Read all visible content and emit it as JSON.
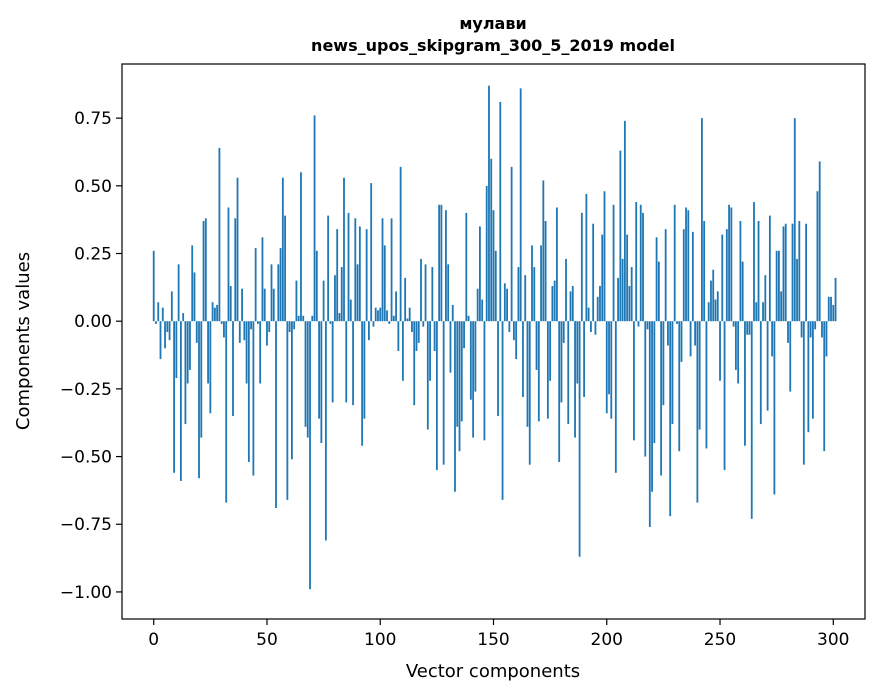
{
  "chart_data": {
    "type": "bar",
    "title_line1": "мулави",
    "title_line2": "news_upos_skipgram_300_5_2019 model",
    "xlabel": "Vector components",
    "ylabel": "Components values",
    "xlim": [
      -14,
      314
    ],
    "ylim": [
      -1.1,
      0.95
    ],
    "xticks": [
      0,
      50,
      100,
      150,
      200,
      250,
      300
    ],
    "xtick_labels": [
      "0",
      "50",
      "100",
      "150",
      "200",
      "250",
      "300"
    ],
    "yticks": [
      -1.0,
      -0.75,
      -0.5,
      -0.25,
      0.0,
      0.25,
      0.5,
      0.75
    ],
    "ytick_labels": [
      "−1.00",
      "−0.75",
      "−0.50",
      "−0.25",
      "0.00",
      "0.25",
      "0.50",
      "0.75"
    ],
    "bar_color": "#1f77b4",
    "grid": false,
    "values": [
      0.26,
      -0.01,
      0.07,
      -0.14,
      0.05,
      -0.1,
      -0.04,
      -0.07,
      0.11,
      -0.56,
      -0.21,
      0.21,
      -0.59,
      0.03,
      -0.38,
      -0.23,
      -0.18,
      0.28,
      0.18,
      -0.08,
      -0.58,
      -0.43,
      0.37,
      0.38,
      -0.23,
      -0.34,
      0.07,
      0.05,
      0.06,
      0.64,
      -0.01,
      -0.06,
      -0.67,
      0.42,
      0.13,
      -0.35,
      0.38,
      0.53,
      -0.08,
      0.12,
      -0.07,
      -0.23,
      -0.52,
      -0.03,
      -0.57,
      0.27,
      -0.01,
      -0.23,
      0.31,
      0.12,
      -0.09,
      -0.04,
      0.21,
      0.12,
      -0.69,
      0.21,
      0.27,
      0.53,
      0.39,
      -0.66,
      -0.04,
      -0.51,
      -0.03,
      0.15,
      0.02,
      0.55,
      0.02,
      -0.39,
      -0.43,
      -0.99,
      0.02,
      0.76,
      0.26,
      -0.36,
      -0.45,
      0.15,
      -0.81,
      0.39,
      -0.01,
      -0.3,
      0.17,
      0.34,
      0.03,
      0.2,
      0.53,
      -0.3,
      0.4,
      0.08,
      -0.31,
      0.38,
      0.21,
      0.35,
      -0.46,
      -0.36,
      0.34,
      -0.07,
      0.51,
      -0.02,
      0.05,
      0.04,
      0.05,
      0.38,
      0.28,
      0.04,
      -0.01,
      0.38,
      0.02,
      0.11,
      -0.11,
      0.57,
      -0.22,
      0.16,
      0.01,
      0.05,
      -0.04,
      -0.31,
      -0.11,
      -0.08,
      0.23,
      -0.02,
      0.21,
      -0.4,
      -0.22,
      0.2,
      -0.11,
      -0.55,
      0.43,
      0.43,
      -0.53,
      0.41,
      0.21,
      -0.19,
      0.06,
      -0.63,
      -0.39,
      -0.48,
      -0.37,
      -0.1,
      0.4,
      0.02,
      -0.29,
      -0.43,
      -0.26,
      0.12,
      0.35,
      0.08,
      -0.44,
      0.5,
      0.87,
      0.6,
      0.41,
      0.26,
      -0.35,
      0.81,
      -0.66,
      0.14,
      0.12,
      -0.04,
      0.57,
      -0.07,
      -0.14,
      0.2,
      0.86,
      -0.28,
      0.17,
      -0.39,
      -0.53,
      0.28,
      0.2,
      -0.18,
      -0.37,
      0.28,
      0.52,
      0.37,
      -0.36,
      -0.22,
      0.13,
      0.15,
      0.42,
      -0.52,
      -0.3,
      -0.08,
      0.23,
      -0.38,
      0.11,
      0.13,
      -0.43,
      -0.23,
      -0.87,
      0.4,
      -0.28,
      0.47,
      0.05,
      -0.04,
      0.36,
      -0.05,
      0.09,
      0.13,
      0.32,
      0.48,
      -0.34,
      -0.27,
      -0.36,
      0.43,
      -0.56,
      0.16,
      0.63,
      0.23,
      0.74,
      0.32,
      0.13,
      0.2,
      -0.44,
      0.44,
      -0.02,
      0.43,
      0.4,
      -0.5,
      -0.03,
      -0.76,
      -0.63,
      -0.45,
      0.31,
      0.22,
      -0.57,
      -0.31,
      0.34,
      -0.09,
      -0.72,
      -0.38,
      0.43,
      -0.01,
      -0.48,
      -0.15,
      0.34,
      0.42,
      0.41,
      -0.13,
      0.33,
      -0.09,
      -0.67,
      -0.4,
      0.75,
      0.37,
      -0.47,
      0.07,
      0.15,
      0.19,
      0.08,
      0.11,
      -0.22,
      0.32,
      -0.55,
      0.34,
      0.43,
      0.42,
      -0.02,
      -0.18,
      -0.23,
      0.37,
      0.22,
      -0.46,
      -0.05,
      -0.05,
      -0.73,
      0.44,
      0.07,
      0.37,
      -0.38,
      0.07,
      0.17,
      -0.33,
      0.39,
      -0.13,
      -0.64,
      0.26,
      0.26,
      0.11,
      0.35,
      0.36,
      -0.08,
      -0.26,
      0.36,
      0.75,
      0.23,
      0.37,
      -0.06,
      -0.53,
      0.36,
      -0.41,
      -0.06,
      -0.36,
      -0.03,
      0.48,
      0.59,
      -0.06,
      -0.48,
      -0.13,
      0.09,
      0.09,
      0.06,
      0.16
    ]
  }
}
